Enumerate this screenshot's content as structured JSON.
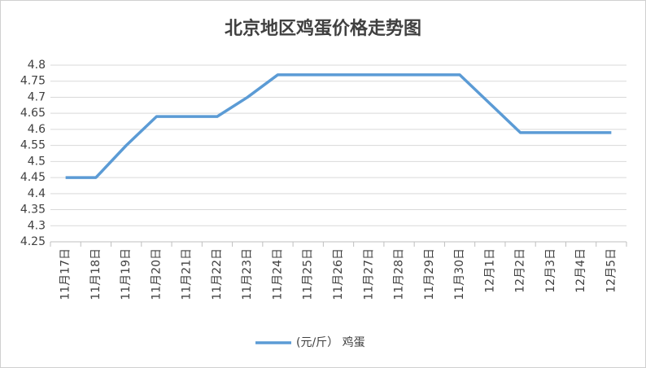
{
  "chart_data": {
    "type": "line",
    "title": "北京地区鸡蛋价格走势图",
    "categories": [
      "11月17日",
      "11月18日",
      "11月19日",
      "11月20日",
      "11月21日",
      "11月22日",
      "11月23日",
      "11月24日",
      "11月25日",
      "11月26日",
      "11月27日",
      "11月28日",
      "11月29日",
      "11月30日",
      "12月1日",
      "12月2日",
      "12月3日",
      "12月4日",
      "12月5日"
    ],
    "series": [
      {
        "name": "(元/斤） 鸡蛋",
        "color": "#5b9bd5",
        "values": [
          4.45,
          4.45,
          4.55,
          4.64,
          4.64,
          4.64,
          4.7,
          4.77,
          4.77,
          4.77,
          4.77,
          4.77,
          4.77,
          4.77,
          4.68,
          4.59,
          4.59,
          4.59,
          4.59
        ]
      }
    ],
    "ylim": [
      4.25,
      4.8
    ],
    "yticks": [
      4.25,
      4.3,
      4.35,
      4.4,
      4.45,
      4.5,
      4.55,
      4.6,
      4.65,
      4.7,
      4.75,
      4.8
    ],
    "grid": true,
    "legend": "bottom"
  }
}
